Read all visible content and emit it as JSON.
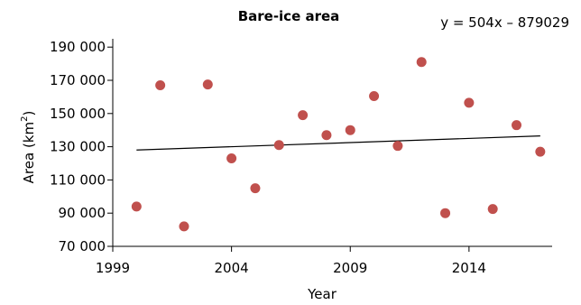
{
  "chart_data": {
    "type": "scatter",
    "title": "Bare-ice area",
    "equation": "y = 504x – 879029",
    "xlabel": "Year",
    "ylabel_main": "Area (km",
    "ylabel_sup": "2",
    "ylabel_end": ")",
    "xlim": [
      1999,
      2017.5
    ],
    "ylim": [
      70000,
      195000
    ],
    "x_ticks": [
      1999,
      2004,
      2009,
      2014
    ],
    "x_tick_labels": [
      "1999",
      "2004",
      "2009",
      "2014"
    ],
    "y_ticks": [
      70000,
      90000,
      110000,
      130000,
      150000,
      170000,
      190000
    ],
    "y_tick_labels": [
      "70 000",
      "90 000",
      "110 000",
      "130 000",
      "150 000",
      "170 000",
      "190 000"
    ],
    "points": [
      {
        "x": 2000,
        "y": 94000
      },
      {
        "x": 2001,
        "y": 167000
      },
      {
        "x": 2002,
        "y": 82000
      },
      {
        "x": 2003,
        "y": 167500
      },
      {
        "x": 2004,
        "y": 123000
      },
      {
        "x": 2005,
        "y": 105000
      },
      {
        "x": 2006,
        "y": 131000
      },
      {
        "x": 2007,
        "y": 149000
      },
      {
        "x": 2008,
        "y": 137000
      },
      {
        "x": 2009,
        "y": 140000
      },
      {
        "x": 2010,
        "y": 160500
      },
      {
        "x": 2011,
        "y": 130500
      },
      {
        "x": 2012,
        "y": 181000
      },
      {
        "x": 2013,
        "y": 90000
      },
      {
        "x": 2014,
        "y": 156500
      },
      {
        "x": 2015,
        "y": 92500
      },
      {
        "x": 2016,
        "y": 143000
      },
      {
        "x": 2017,
        "y": 127000
      }
    ],
    "trendline": {
      "x": [
        2000,
        2017
      ],
      "y": [
        128000,
        136500
      ]
    },
    "point_color": "#c0504d",
    "grid": false
  }
}
